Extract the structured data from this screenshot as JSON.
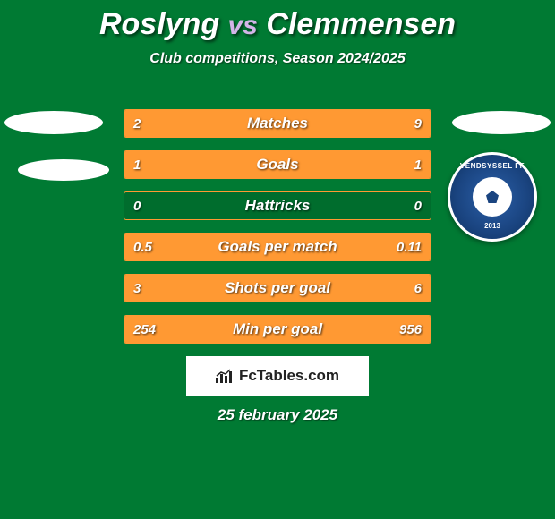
{
  "background_color": "#007a33",
  "title": {
    "player1": "Roslyng",
    "vs": "vs",
    "player2": "Clemmensen",
    "fontsize": 34,
    "color": "#ffffff",
    "vs_color": "#d4b5e8"
  },
  "subtitle": {
    "text": "Club competitions, Season 2024/2025",
    "fontsize": 16,
    "color": "#ffffff"
  },
  "stats": {
    "bar_border_color": "#ff9933",
    "bar_fill_color": "#ff9933",
    "bar_bg_color": "rgba(0,0,0,0.1)",
    "text_color": "#ffffff",
    "label_fontsize": 17,
    "value_fontsize": 15,
    "rows": [
      {
        "label": "Matches",
        "left_val": "2",
        "right_val": "9",
        "left_pct": 18,
        "right_pct": 82
      },
      {
        "label": "Goals",
        "left_val": "1",
        "right_val": "1",
        "left_pct": 50,
        "right_pct": 50
      },
      {
        "label": "Hattricks",
        "left_val": "0",
        "right_val": "0",
        "left_pct": 0,
        "right_pct": 0
      },
      {
        "label": "Goals per match",
        "left_val": "0.5",
        "right_val": "0.11",
        "left_pct": 82,
        "right_pct": 18
      },
      {
        "label": "Shots per goal",
        "left_val": "3",
        "right_val": "6",
        "left_pct": 33,
        "right_pct": 67
      },
      {
        "label": "Min per goal",
        "left_val": "254",
        "right_val": "956",
        "left_pct": 21,
        "right_pct": 79
      }
    ]
  },
  "badge": {
    "top_text": "VENDSYSSEL FF",
    "bottom_text": "2013",
    "outer_color": "#1a4480",
    "border_color": "#ffffff"
  },
  "logo": {
    "text": "FcTables.com",
    "bg_color": "#ffffff",
    "text_color": "#222222"
  },
  "date": {
    "text": "25 february 2025",
    "fontsize": 17,
    "color": "#ffffff"
  },
  "ellipses": {
    "color": "#ffffff"
  }
}
